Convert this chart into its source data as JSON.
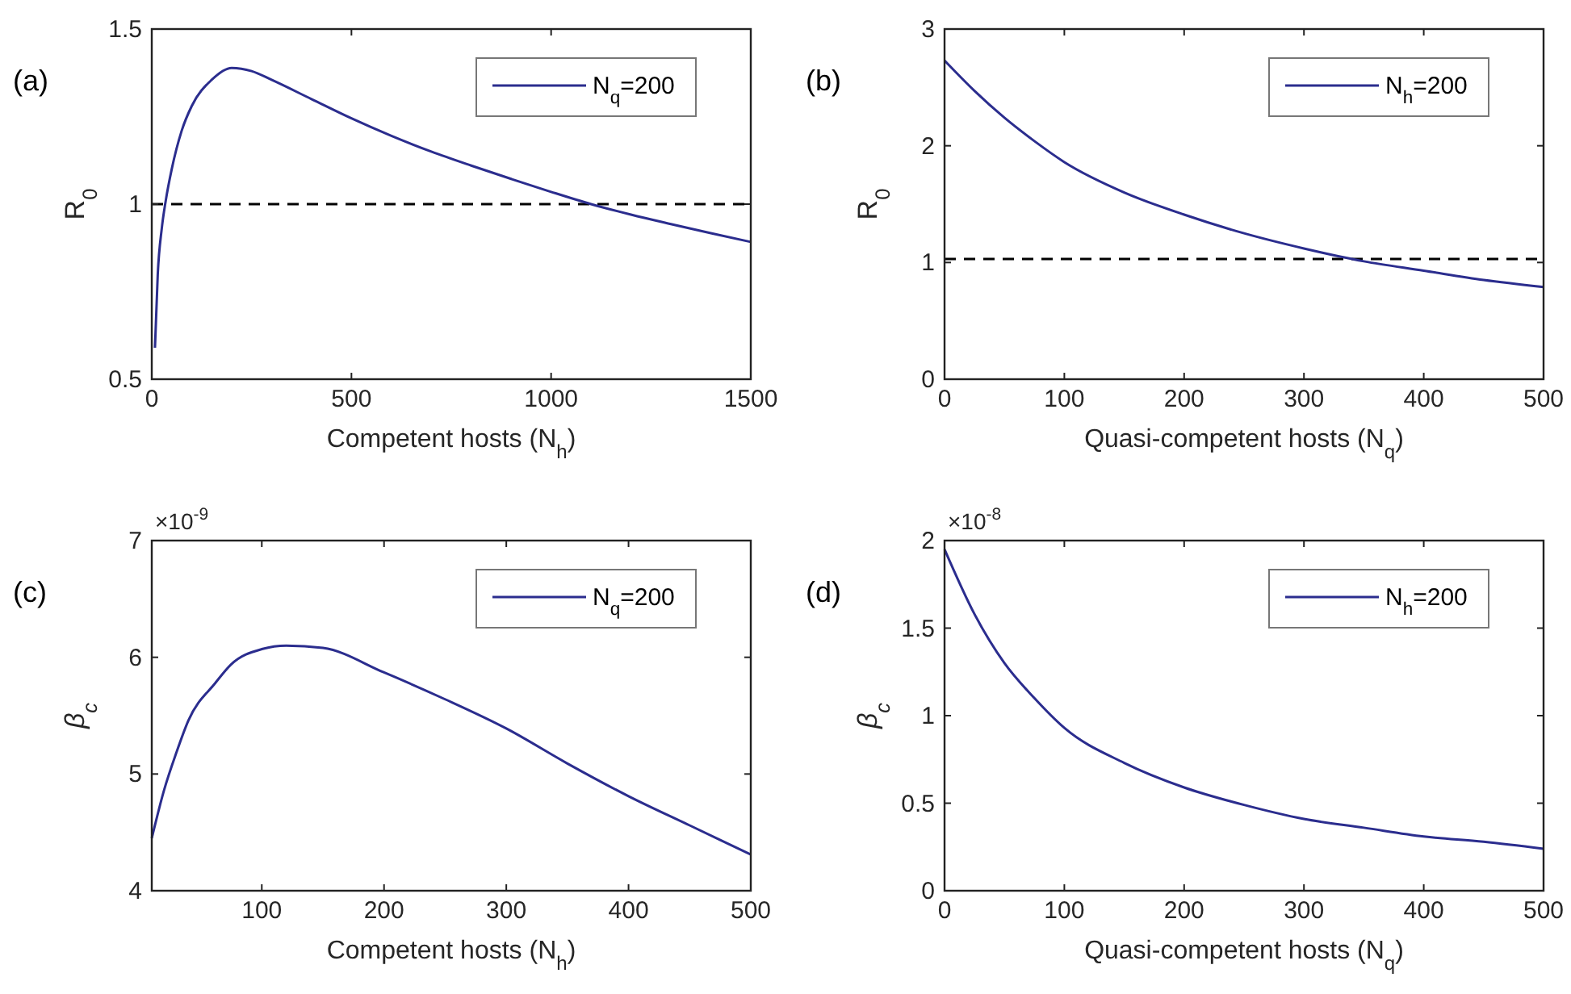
{
  "chart_data": [
    {
      "type": "line",
      "title": "(a)",
      "xlabel": "Competent hosts (N$_{h}$)",
      "ylabel": "R$_{0}$",
      "x": [
        8,
        15,
        25,
        35,
        50,
        75,
        100,
        150,
        200,
        250,
        300,
        400,
        500,
        600,
        700,
        800,
        900,
        1000,
        1100,
        1200,
        1300,
        1400,
        1500
      ],
      "series": [
        {
          "name": "N$_{q}$=200",
          "color": "#2b2d8e",
          "values": [
            0.59,
            0.8,
            0.93,
            1.01,
            1.1,
            1.21,
            1.28,
            1.355,
            1.389,
            1.38,
            1.355,
            1.3,
            1.245,
            1.195,
            1.15,
            1.11,
            1.072,
            1.035,
            1.0,
            0.97,
            0.943,
            0.917,
            0.892
          ]
        }
      ],
      "xlim": [
        0,
        1500
      ],
      "xticks": [
        0,
        500,
        1000,
        1500
      ],
      "ylim": [
        0.5,
        1.5
      ],
      "yticks": [
        0.5,
        1,
        1.5
      ],
      "ref_lines": [
        {
          "axis": "y",
          "value": 1,
          "color": "#000000",
          "line_style": "dashed"
        }
      ],
      "legend": "top right",
      "line_style": "solid",
      "marker": "none"
    },
    {
      "type": "line",
      "title": "(b)",
      "xlabel": "Quasi-competent hosts (N$_{q}$)",
      "ylabel": "R$_{0}$",
      "x": [
        0,
        25,
        50,
        75,
        100,
        150,
        200,
        250,
        300,
        350,
        400,
        450,
        500
      ],
      "series": [
        {
          "name": "N$_{h}$=200",
          "color": "#2b2d8e",
          "values": [
            2.73,
            2.47,
            2.24,
            2.04,
            1.86,
            1.6,
            1.41,
            1.25,
            1.12,
            1.01,
            0.93,
            0.85,
            0.79
          ]
        }
      ],
      "xlim": [
        0,
        500
      ],
      "xticks": [
        0,
        100,
        200,
        300,
        400,
        500
      ],
      "ylim": [
        0,
        3
      ],
      "yticks": [
        0,
        1,
        2,
        3
      ],
      "ref_lines": [
        {
          "axis": "y",
          "value": 1.03,
          "color": "#000000",
          "line_style": "dashed"
        }
      ],
      "legend": "top right",
      "line_style": "solid",
      "marker": "none"
    },
    {
      "type": "line",
      "title": "(c)",
      "xlabel": "Competent hosts (N$_{h}$)",
      "ylabel": "β$_{c}$",
      "annotations": [
        "×10$^{-9}$"
      ],
      "x": [
        10,
        20,
        30,
        40,
        62,
        75,
        100,
        120,
        150,
        200,
        250,
        300,
        350,
        400,
        450,
        500
      ],
      "series": [
        {
          "name": "N$_{q}$=200",
          "color": "#2b2d8e",
          "values": [
            4.45,
            4.86,
            5.18,
            5.46,
            5.78,
            5.94,
            6.07,
            6.1,
            6.08,
            5.87,
            5.64,
            5.39,
            5.09,
            4.81,
            4.56,
            4.31
          ]
        }
      ],
      "xlim": [
        10,
        500
      ],
      "xticks": [
        100,
        200,
        300,
        400,
        500
      ],
      "ylim": [
        4,
        7
      ],
      "yticks": [
        4,
        5,
        6,
        7
      ],
      "legend": "top right",
      "line_style": "solid",
      "marker": "none"
    },
    {
      "type": "line",
      "title": "(d)",
      "xlabel": "Quasi-competent hosts (N$_{q}$)",
      "ylabel": "β$_{c}$",
      "annotations": [
        "×10$^{-8}$"
      ],
      "x": [
        0,
        25,
        50,
        75,
        100,
        150,
        200,
        250,
        300,
        350,
        400,
        450,
        500
      ],
      "series": [
        {
          "name": "N$_{h}$=200",
          "color": "#2b2d8e",
          "values": [
            1.95,
            1.58,
            1.3,
            1.1,
            0.93,
            0.73,
            0.59,
            0.49,
            0.41,
            0.36,
            0.31,
            0.28,
            0.24
          ]
        }
      ],
      "xlim": [
        0,
        500
      ],
      "xticks": [
        0,
        100,
        200,
        300,
        400,
        500
      ],
      "ylim": [
        0,
        2
      ],
      "yticks": [
        0,
        0.5,
        1,
        1.5,
        2
      ],
      "legend": "top right",
      "line_style": "solid",
      "marker": "none"
    }
  ]
}
